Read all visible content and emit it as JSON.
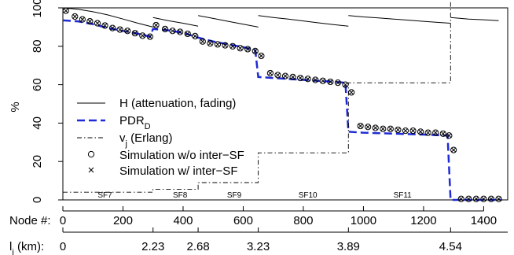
{
  "chart_data": {
    "type": "line",
    "ylabel": "%",
    "ylim": [
      0,
      100
    ],
    "y_ticks": [
      0,
      20,
      40,
      60,
      80,
      100
    ],
    "xlim": [
      0,
      1480
    ],
    "x_ticks": [
      0,
      200,
      400,
      600,
      800,
      1000,
      1200,
      1400
    ],
    "x_axis_label": "Node #:",
    "distance_axis_label": "l",
    "distance_axis_label_sub": "j",
    "distance_axis_label_suffix": " (km):",
    "distance_ticks": [
      {
        "node": 0,
        "label": "0"
      },
      {
        "node": 300,
        "label": "2.23"
      },
      {
        "node": 450,
        "label": "2.68"
      },
      {
        "node": 650,
        "label": "3.23"
      },
      {
        "node": 950,
        "label": "3.89"
      },
      {
        "node": 1290,
        "label": "4.54"
      }
    ],
    "sf_regions": [
      {
        "label": "SF7",
        "x": 140
      },
      {
        "label": "SF8",
        "x": 390
      },
      {
        "label": "SF9",
        "x": 570
      },
      {
        "label": "SF10",
        "x": 815
      },
      {
        "label": "SF11",
        "x": 1130
      }
    ],
    "legend": {
      "placement": "center-left",
      "entries": [
        {
          "text": "H (attenuation, fading)",
          "style": "solid"
        },
        {
          "text": "PDR",
          "sub": "D",
          "style": "dashed"
        },
        {
          "text": "v",
          "sub": "j",
          "suffix": " (Erlang)",
          "style": "dashdot"
        },
        {
          "text": "Simulation w/o inter−SF",
          "marker": "o"
        },
        {
          "text": "Simulation w/ inter−SF",
          "marker": "x"
        }
      ]
    },
    "series": [
      {
        "name": "H (attenuation, fading)",
        "style": "solid",
        "color": "#000000",
        "segments": [
          [
            [
              0,
              100
            ],
            [
              50,
              99.3
            ],
            [
              100,
              98
            ],
            [
              150,
              96.3
            ],
            [
              200,
              94.2
            ],
            [
              250,
              92
            ],
            [
              300,
              90
            ]
          ],
          [
            [
              300,
              95
            ],
            [
              350,
              93.3
            ],
            [
              400,
              92
            ],
            [
              450,
              90.5
            ]
          ],
          [
            [
              450,
              96
            ],
            [
              500,
              94.5
            ],
            [
              550,
              93
            ],
            [
              600,
              91.5
            ],
            [
              650,
              90
            ]
          ],
          [
            [
              650,
              96
            ],
            [
              700,
              95
            ],
            [
              750,
              94.2
            ],
            [
              800,
              93.2
            ],
            [
              850,
              92.2
            ],
            [
              900,
              91.3
            ],
            [
              950,
              90.5
            ]
          ],
          [
            [
              950,
              96
            ],
            [
              1000,
              95.3
            ],
            [
              1050,
              94.8
            ],
            [
              1100,
              94.2
            ],
            [
              1150,
              93.6
            ],
            [
              1200,
              93
            ],
            [
              1250,
              92.4
            ],
            [
              1290,
              92
            ]
          ],
          [
            [
              1290,
              95
            ],
            [
              1350,
              94.2
            ],
            [
              1400,
              93.8
            ],
            [
              1450,
              93.3
            ]
          ]
        ]
      },
      {
        "name": "PDR_D",
        "style": "dashed",
        "color": "#1f2bd6",
        "points": [
          [
            0,
            93.5
          ],
          [
            50,
            93
          ],
          [
            100,
            91.5
          ],
          [
            150,
            89.5
          ],
          [
            200,
            88
          ],
          [
            250,
            86.5
          ],
          [
            290,
            85
          ],
          [
            300,
            89
          ],
          [
            350,
            88.3
          ],
          [
            400,
            87
          ],
          [
            450,
            84.5
          ],
          [
            500,
            82.5
          ],
          [
            550,
            81
          ],
          [
            600,
            79.5
          ],
          [
            640,
            78
          ],
          [
            650,
            64
          ],
          [
            700,
            63.5
          ],
          [
            750,
            63
          ],
          [
            800,
            62.5
          ],
          [
            850,
            62
          ],
          [
            900,
            61.5
          ],
          [
            940,
            61
          ],
          [
            950,
            35.5
          ],
          [
            1000,
            35
          ],
          [
            1100,
            34.5
          ],
          [
            1200,
            34
          ],
          [
            1280,
            33.5
          ],
          [
            1290,
            0
          ],
          [
            1460,
            0
          ]
        ]
      },
      {
        "name": "v_j (Erlang)",
        "style": "dashdot",
        "color": "#000000",
        "points": [
          [
            0,
            4
          ],
          [
            300,
            4
          ],
          [
            300,
            5.5
          ],
          [
            450,
            5.5
          ],
          [
            450,
            9
          ],
          [
            650,
            9
          ],
          [
            650,
            24.5
          ],
          [
            950,
            24.5
          ],
          [
            950,
            61
          ],
          [
            1290,
            61
          ],
          [
            1290,
            103
          ]
        ]
      },
      {
        "name": "Simulation w/o inter-SF",
        "marker": "o",
        "x": [
          10,
          40,
          65,
          90,
          115,
          140,
          165,
          190,
          215,
          240,
          265,
          290,
          310,
          340,
          365,
          390,
          415,
          440,
          465,
          490,
          515,
          540,
          565,
          590,
          615,
          640,
          660,
          690,
          715,
          740,
          765,
          790,
          815,
          840,
          865,
          890,
          915,
          940,
          960,
          990,
          1015,
          1040,
          1065,
          1090,
          1115,
          1140,
          1165,
          1190,
          1215,
          1240,
          1265,
          1285,
          1300,
          1325,
          1350,
          1375,
          1400,
          1425,
          1450
        ],
        "y": [
          98.5,
          95.5,
          94,
          93,
          92,
          90.8,
          89.5,
          88.7,
          88,
          86.8,
          85.5,
          85,
          91,
          89,
          88,
          87.5,
          86.5,
          85.3,
          82.5,
          81.5,
          81,
          80.5,
          80,
          79,
          78.5,
          77.5,
          75,
          66,
          65,
          64.5,
          64,
          63.5,
          63,
          62.5,
          62,
          61.5,
          61,
          60,
          56,
          38.5,
          38,
          37.5,
          37,
          37,
          36.5,
          36,
          36,
          35.5,
          35,
          35,
          34.5,
          33.5,
          26,
          0.5,
          0.5,
          0.5,
          0.5,
          0.5,
          0.5
        ]
      },
      {
        "name": "Simulation w/ inter-SF",
        "marker": "x",
        "x": [
          10,
          40,
          65,
          90,
          115,
          140,
          165,
          190,
          215,
          240,
          265,
          290,
          310,
          340,
          365,
          390,
          415,
          440,
          465,
          490,
          515,
          540,
          565,
          590,
          615,
          640,
          660,
          690,
          715,
          740,
          765,
          790,
          815,
          840,
          865,
          890,
          915,
          940,
          960,
          990,
          1015,
          1040,
          1065,
          1090,
          1115,
          1140,
          1165,
          1190,
          1215,
          1240,
          1265,
          1285,
          1300,
          1325,
          1350,
          1375,
          1400,
          1425,
          1450
        ],
        "y": [
          98.5,
          95.5,
          94,
          93,
          92,
          90.8,
          89.5,
          88.7,
          88,
          86.8,
          85.5,
          85,
          91,
          89,
          88,
          87.5,
          86.5,
          85.3,
          82.5,
          81.5,
          81,
          80.5,
          80,
          79,
          78.5,
          77.5,
          75,
          66,
          65,
          64.5,
          64,
          63.5,
          63,
          62.5,
          62,
          61.5,
          61,
          60,
          56,
          38.5,
          38,
          37.5,
          37,
          37,
          36.5,
          36,
          36,
          35.5,
          35,
          35,
          34.5,
          33.5,
          26,
          0.5,
          0.5,
          0.5,
          0.5,
          0.5,
          0.5
        ]
      }
    ]
  }
}
